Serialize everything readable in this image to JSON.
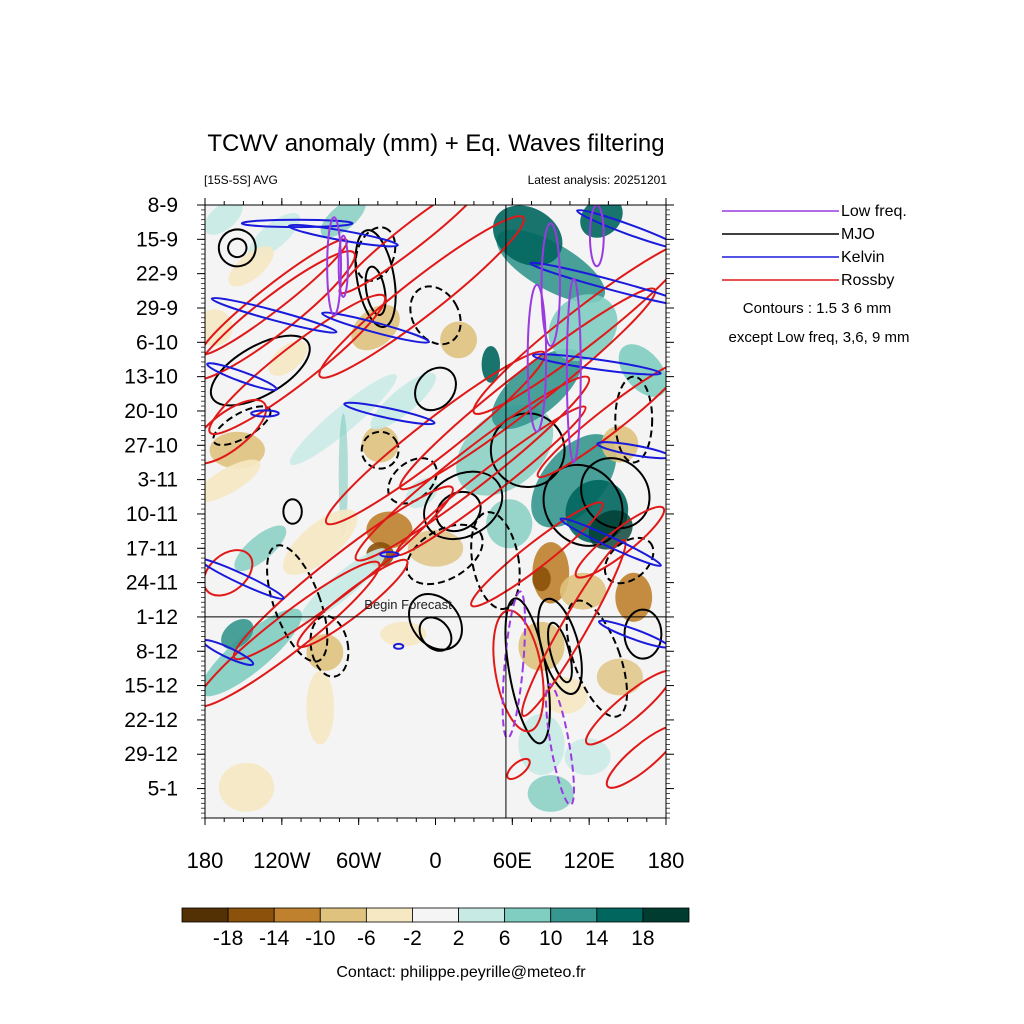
{
  "chart_data": {
    "type": "heatmap",
    "title": "TCWV anomaly (mm) + Eq. Waves filtering",
    "subtitle_left": "[15S-5S] AVG",
    "subtitle_right": "Latest analysis: 20251201",
    "forecast_label": "Begin Forecast",
    "x_ticks": [
      "180",
      "120W",
      "60W",
      "0",
      "60E",
      "120E",
      "180"
    ],
    "x_tick_values": [
      -180,
      -120,
      -60,
      0,
      60,
      120,
      180
    ],
    "xlim": [
      -180,
      180
    ],
    "y_ticks": [
      "8-9",
      "15-9",
      "22-9",
      "29-9",
      "6-10",
      "13-10",
      "20-10",
      "27-10",
      "3-11",
      "10-11",
      "17-11",
      "24-11",
      "1-12",
      "8-12",
      "15-12",
      "22-12",
      "29-12",
      "5-1"
    ],
    "ylim_days": [
      0,
      125
    ],
    "forecast_start_day": 84,
    "vertical_line_lon": 55,
    "legend": [
      {
        "label": "Low freq.",
        "color": "#9a3ae0"
      },
      {
        "label": "MJO",
        "color": "#000000"
      },
      {
        "label": "Kelvin",
        "color": "#1a1adc"
      },
      {
        "label": "Rossby",
        "color": "#e01818"
      }
    ],
    "contours_note_1": "Contours :  1.5 3 6  mm",
    "contours_note_2": "except Low freq,  3,6, 9 mm",
    "colorbar": {
      "labels": [
        "-18",
        "-14",
        "-10",
        "-6",
        "-2",
        "2",
        "6",
        "10",
        "14",
        "18"
      ],
      "colors": [
        "#543005",
        "#8c510a",
        "#bf812d",
        "#dfc27d",
        "#f6e8c3",
        "#f5f5f5",
        "#c7eae5",
        "#80cdc1",
        "#35978f",
        "#01665e",
        "#003c30"
      ]
    },
    "contact": "Contact: philippe.peyrille@meteo.fr"
  }
}
